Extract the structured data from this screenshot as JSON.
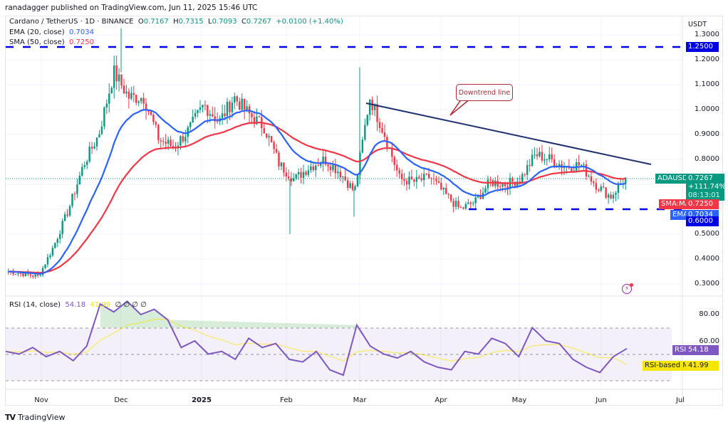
{
  "header": {
    "published": "ranadagger published on TradingView.com, Jun 11, 2025 15:46 UTC"
  },
  "legend": {
    "symbol": "Cardano / TetherUS · 1D · BINANCE",
    "open_label": "O",
    "open": "0.7167",
    "high_label": "H",
    "high": "0.7315",
    "low_label": "L",
    "low": "0.7093",
    "close_label": "C",
    "close": "0.7267",
    "change": "+0.0100 (+1.40%)",
    "ema_label": "EMA (20, close)",
    "ema_value": "0.7034",
    "sma_label": "SMA (50, close)",
    "sma_value": "0.7250"
  },
  "rsi_legend": {
    "label": "RSI (14, close)",
    "rsi_value": "54.18",
    "ma_value": "41.99",
    "extra": "∅ ∅ ∅ ∅"
  },
  "price_axis": {
    "currency": "USDT",
    "ticks": [
      "1.3000",
      "1.2000",
      "1.1000",
      "1.0000",
      "0.9000",
      "0.8000",
      "0.5000",
      "0.4000",
      "0.3000"
    ]
  },
  "rsi_axis": {
    "ticks": [
      "80.00",
      "60.00"
    ]
  },
  "tags": {
    "resistance": "1.2500",
    "symbol_name": "ADAUSDT",
    "last_price": "0.7267",
    "last_change": "+111.74%",
    "countdown": "08:13:01",
    "sma_name": "SMA:MA",
    "sma_value": "0.7250",
    "ema_name": "EMA",
    "ema_value": "0.7034",
    "support": "0.6000",
    "rsi_name": "RSI",
    "rsi_value": "54.18",
    "rsi_ma_name": "RSI-based MA",
    "rsi_ma_value": "41.99"
  },
  "time_axis": [
    "Nov",
    "Dec",
    "2025",
    "Feb",
    "Mar",
    "Apr",
    "May",
    "Jun",
    "Jul"
  ],
  "annotations": {
    "callout": "Downtrend line"
  },
  "footer": {
    "brand": "TradingView",
    "logo": "TV"
  },
  "colors": {
    "up": "#089981",
    "down": "#f23645",
    "ema": "#2962ff",
    "sma": "#f23645",
    "levels": "#0000e6",
    "trendline": "#1f2f6e",
    "rsi": "#7e57c2",
    "rsi_ma": "#f7e600"
  },
  "chart_data": {
    "type": "candlestick",
    "title": "Cardano / TetherUS · 1D · BINANCE",
    "xlabel": "",
    "ylabel": "USDT",
    "ylim": [
      0.27,
      1.33
    ],
    "x_ticks": [
      "Nov",
      "Dec",
      "2025",
      "Feb",
      "Mar",
      "Apr",
      "May",
      "Jun",
      "Jul"
    ],
    "y_ticks": [
      0.3,
      0.4,
      0.5,
      0.6,
      0.7,
      0.8,
      0.9,
      1.0,
      1.1,
      1.2,
      1.3
    ],
    "ohlc_last": {
      "open": 0.7167,
      "high": 0.7315,
      "low": 0.7093,
      "close": 0.7267,
      "change": 0.01,
      "change_pct": 1.4
    },
    "price_path": {
      "x": [
        "Oct-22",
        "Nov-01",
        "Nov-08",
        "Nov-12",
        "Nov-16",
        "Nov-22",
        "Nov-28",
        "Dec-03",
        "Dec-08",
        "Dec-14",
        "Dec-20",
        "Dec-26",
        "Jan-03",
        "Jan-08",
        "Jan-14",
        "Jan-18",
        "Jan-22",
        "Jan-28",
        "Feb-02",
        "Feb-03",
        "Feb-08",
        "Feb-14",
        "Feb-20",
        "Feb-28",
        "Mar-02",
        "Mar-04",
        "Mar-10",
        "Mar-20",
        "Mar-26",
        "Apr-02",
        "Apr-07",
        "Apr-12",
        "Apr-20",
        "Apr-26",
        "May-05",
        "May-10",
        "May-14",
        "May-20",
        "May-24",
        "May-30",
        "Jun-05",
        "Jun-11"
      ],
      "close": [
        0.35,
        0.34,
        0.33,
        0.45,
        0.6,
        0.78,
        0.9,
        1.15,
        1.05,
        1.05,
        0.88,
        0.85,
        0.92,
        1.02,
        0.95,
        1.05,
        0.98,
        0.93,
        0.78,
        0.72,
        0.77,
        0.8,
        0.75,
        0.67,
        1.05,
        0.9,
        0.72,
        0.71,
        0.73,
        0.66,
        0.6,
        0.63,
        0.71,
        0.7,
        0.72,
        0.82,
        0.8,
        0.77,
        0.78,
        0.7,
        0.65,
        0.7267
      ]
    },
    "extremes": {
      "high": 1.326,
      "high_date": "Dec-03",
      "spike_high": 1.17,
      "spike_date": "Mar-02",
      "low": 0.5,
      "low_date": "Feb-03"
    },
    "series": [
      {
        "name": "EMA (20, close)",
        "last": 0.7034,
        "color": "#2962ff"
      },
      {
        "name": "SMA (50, close)",
        "last": 0.725,
        "color": "#f23645"
      }
    ],
    "levels": [
      {
        "name": "resistance",
        "value": 1.25,
        "style": "dashed"
      },
      {
        "name": "support",
        "value": 0.6,
        "style": "dashed"
      }
    ],
    "trendline": {
      "label": "Downtrend line",
      "from": {
        "x": "Mar-04",
        "y": 1.03
      },
      "to": {
        "x": "Jun-22",
        "y": 0.79
      }
    },
    "rsi": {
      "period": 14,
      "last": 54.18,
      "ma_last": 41.99,
      "levels": [
        70,
        50,
        30
      ],
      "y_ticks": [
        80,
        60
      ],
      "approx_path": [
        52,
        50,
        55,
        48,
        52,
        45,
        56,
        88,
        82,
        90,
        80,
        84,
        76,
        55,
        60,
        50,
        52,
        46,
        62,
        55,
        58,
        46,
        44,
        52,
        38,
        34,
        72,
        56,
        50,
        47,
        52,
        44,
        40,
        38,
        52,
        50,
        62,
        58,
        48,
        70,
        60,
        58,
        46,
        40,
        36,
        48,
        54.18
      ]
    }
  }
}
